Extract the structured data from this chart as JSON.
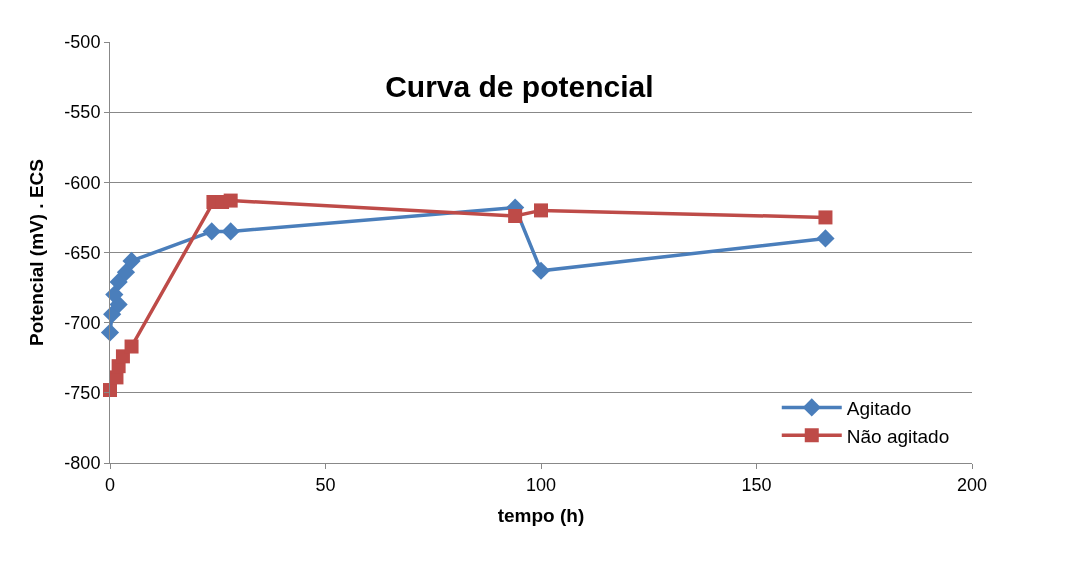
{
  "chart_data": {
    "type": "line",
    "title": "Curva de potencial",
    "xlabel": "tempo (h)",
    "ylabel": "Potencial (mV) . ECS",
    "xlim": [
      0,
      200
    ],
    "xticks": [
      0,
      50,
      100,
      150,
      200
    ],
    "ylim": [
      -800,
      -500
    ],
    "yticks": [
      -800,
      -750,
      -700,
      -650,
      -600,
      -550,
      -500
    ],
    "grid": "y",
    "legend": "bottom right",
    "series": [
      {
        "name": "Agitado",
        "color": "#4a7ebb",
        "marker": "diamond",
        "x": [
          0,
          0.5,
          2,
          1,
          2,
          3.7,
          5,
          23.6,
          28,
          94,
          100,
          166
        ],
        "values": [
          -707,
          -694,
          -687,
          -680,
          -671,
          -664,
          -656,
          -635,
          -635,
          -618,
          -663,
          -640
        ]
      },
      {
        "name": "Não agitado",
        "color": "#be4b48",
        "marker": "square",
        "x": [
          0,
          1.5,
          2,
          3,
          5,
          24,
          26,
          28,
          94,
          100,
          166
        ],
        "values": [
          -748,
          -739,
          -731,
          -724,
          -717,
          -614,
          -614,
          -613,
          -624,
          -620,
          -625
        ]
      }
    ]
  }
}
